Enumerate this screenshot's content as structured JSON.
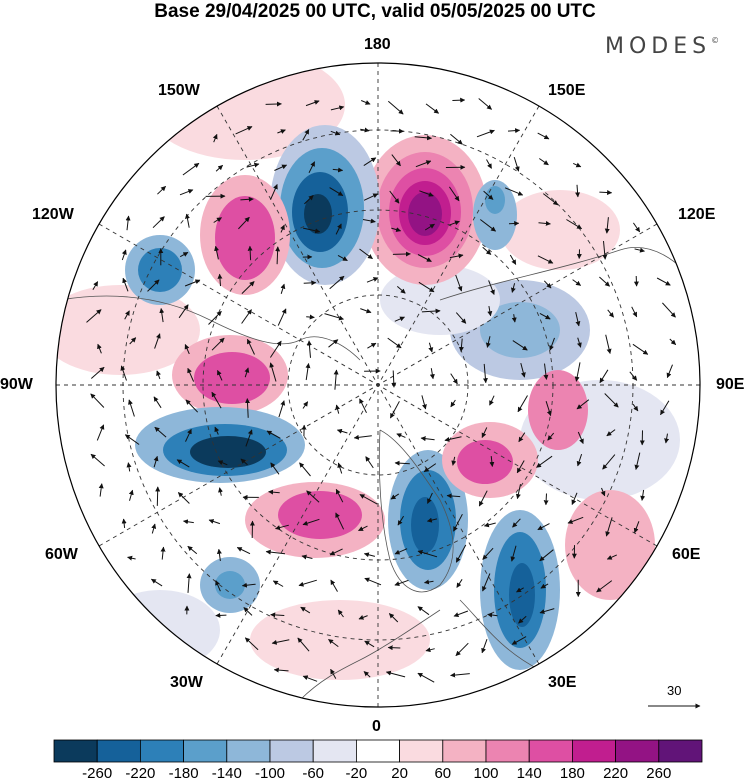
{
  "title": "Base 29/04/2025 00 UTC, valid 05/05/2025 00 UTC",
  "logo": {
    "text": "MODES",
    "mark": "©"
  },
  "map": {
    "projection": "north-polar-stereographic",
    "longitude_labels": [
      "180",
      "150E",
      "120E",
      "90E",
      "60E",
      "30E",
      "0",
      "30W",
      "60W",
      "90W",
      "120W",
      "150W"
    ],
    "colors": {
      "land_outline": "#555555",
      "grid": "#333333",
      "vector": "#111111"
    }
  },
  "wind_reference": {
    "label": "30",
    "value": 30
  },
  "colorbar": {
    "ticks": [
      "-260",
      "-220",
      "-180",
      "-140",
      "-100",
      "-60",
      "-20",
      "20",
      "60",
      "100",
      "140",
      "180",
      "220",
      "260"
    ],
    "colors": [
      "#0b3a5c",
      "#15619a",
      "#2d80b8",
      "#5b9fcb",
      "#8eb7d9",
      "#bcc9e3",
      "#e4e6f2",
      "#ffffff",
      "#fadbe0",
      "#f4b2c3",
      "#ec84b1",
      "#de4fa3",
      "#c11e8f",
      "#931384",
      "#611478"
    ]
  },
  "anomaly_field": {
    "units_shown": "none",
    "cells": [
      {
        "lon_lat": "ne-1",
        "value": 240
      },
      {
        "lon_lat": "ne-2",
        "value": -200
      },
      {
        "lon_lat": "nw-1",
        "value": 120
      },
      {
        "lon_lat": "nw-2",
        "value": -180
      },
      {
        "lon_lat": "w-1",
        "value": -160
      },
      {
        "lon_lat": "w-2",
        "value": 150
      },
      {
        "lon_lat": "w-3",
        "value": -240
      },
      {
        "lon_lat": "sw-1",
        "value": 170
      },
      {
        "lon_lat": "s-1",
        "value": -200
      },
      {
        "lon_lat": "se-1",
        "value": -180
      },
      {
        "lon_lat": "e-1",
        "value": 180
      },
      {
        "lon_lat": "e-2",
        "value": 80
      },
      {
        "lon_lat": "e-3",
        "value": -80
      }
    ]
  }
}
